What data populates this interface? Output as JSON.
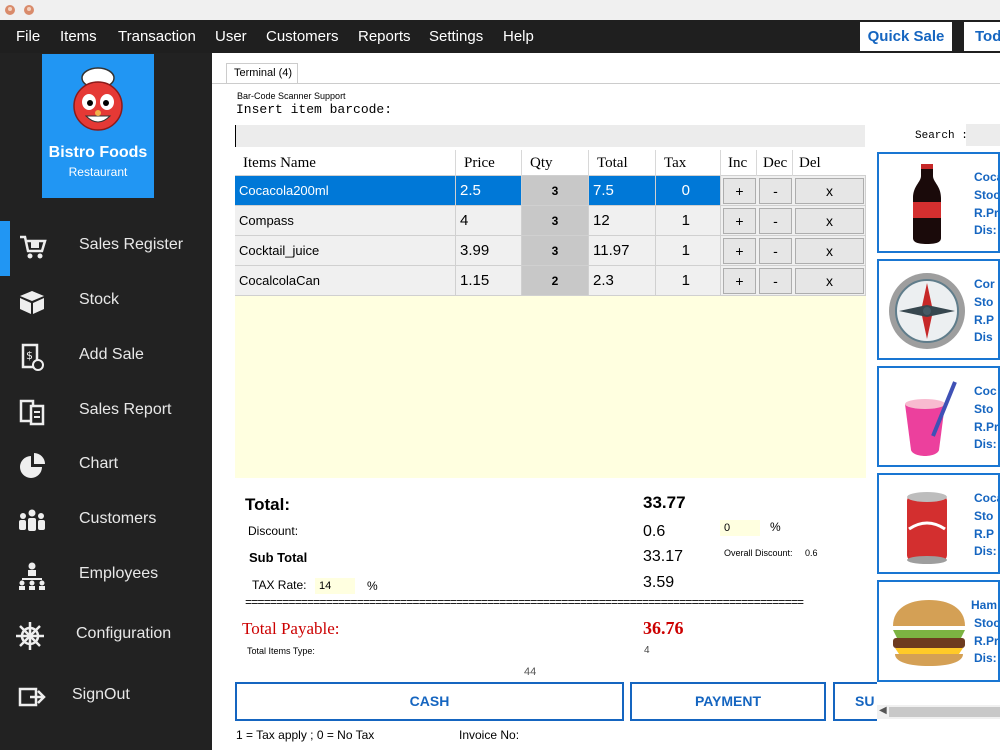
{
  "menu": [
    "File",
    "Items",
    "Transaction",
    "User",
    "Customers",
    "Reports",
    "Settings",
    "Help"
  ],
  "top_buttons": {
    "quick_sale": "Quick Sale",
    "today": "Tod"
  },
  "brand": {
    "name": "Bistro Foods",
    "subtitle": "Restaurant"
  },
  "sidebar": {
    "items": [
      {
        "label": "Sales Register",
        "icon": "cart-icon"
      },
      {
        "label": "Stock",
        "icon": "box-icon"
      },
      {
        "label": "Add Sale",
        "icon": "receipt-icon"
      },
      {
        "label": "Sales Report",
        "icon": "report-icon"
      },
      {
        "label": "Chart",
        "icon": "pie-chart-icon"
      },
      {
        "label": "Customers",
        "icon": "people-icon"
      },
      {
        "label": "Employees",
        "icon": "org-chart-icon"
      },
      {
        "label": "Configuration",
        "icon": "wheel-icon"
      },
      {
        "label": "SignOut",
        "icon": "signout-icon"
      }
    ]
  },
  "terminal": {
    "tab_label": "Terminal (4)",
    "scanner_label": "Bar-Code Scanner Support",
    "barcode_prompt": "Insert item barcode:",
    "barcode_value": ""
  },
  "grid": {
    "headers": [
      "Items Name",
      "Price",
      "Qty",
      "Total",
      "Tax",
      "Inc",
      "Dec",
      "Del"
    ],
    "rows": [
      {
        "name": "Cocacola200ml",
        "price": "2.5",
        "qty": "3",
        "total": "7.5",
        "tax": "0",
        "inc": "+",
        "dec": "-",
        "del": "x"
      },
      {
        "name": "Compass",
        "price": "4",
        "qty": "3",
        "total": "12",
        "tax": "1",
        "inc": "+",
        "dec": "-",
        "del": "x"
      },
      {
        "name": "Cocktail_juice",
        "price": "3.99",
        "qty": "3",
        "total": "11.97",
        "tax": "1",
        "inc": "+",
        "dec": "-",
        "del": "x"
      },
      {
        "name": "CocalcolaCan",
        "price": "1.15",
        "qty": "2",
        "total": "2.3",
        "tax": "1",
        "inc": "+",
        "dec": "-",
        "del": "x"
      }
    ]
  },
  "totals": {
    "total_label": "Total:",
    "total_value": "33.77",
    "discount_label": "Discount:",
    "discount_value": "0.6",
    "discount_input": "0",
    "percent_sign": "%",
    "sub_total_label": "Sub Total",
    "sub_total_value": "33.17",
    "overall_discount_label": "Overall Discount:",
    "overall_discount_value": "0.6",
    "tax_rate_label": "TAX Rate:",
    "tax_rate_input": "14",
    "tax_value": "3.59",
    "divider": "==========================================================================================",
    "payable_label": "Total Payable:",
    "payable_value": "36.76",
    "items_type_label": "Total Items Type:",
    "items_type_value": "4",
    "count_value": "44"
  },
  "actions": {
    "cash": "CASH",
    "payment": "PAYMENT",
    "third": "SU"
  },
  "footer": {
    "tax_note": "1 = Tax apply ; 0 =  No Tax",
    "invoice_label": "Invoice No:"
  },
  "search": {
    "label": "Search :",
    "value": ""
  },
  "products": [
    {
      "name": "Coca",
      "stock": "Stoc",
      "price": "R.Pr",
      "dis": "Dis:",
      "icon": "cola-bottle-icon"
    },
    {
      "name": "Cor",
      "stock": "Sto",
      "price": "R.P",
      "dis": "Dis",
      "icon": "compass-icon"
    },
    {
      "name": "Coc",
      "stock": "Sto",
      "price": "R.Pr",
      "dis": "Dis:",
      "icon": "cocktail-icon"
    },
    {
      "name": "Coca",
      "stock": "Sto",
      "price": "R.P",
      "dis": "Dis:",
      "icon": "cola-can-icon"
    },
    {
      "name": "Ham",
      "stock": "Stoc",
      "price": "R.Pri",
      "dis": "Dis: (",
      "icon": "hamburger-icon"
    }
  ],
  "colors": {
    "accent": "#2196f3",
    "sidebar": "#222222",
    "menubar": "#1f1f1f",
    "button_text": "#1565c0",
    "payable": "#cc0000",
    "selected_row": "#0078d7"
  }
}
